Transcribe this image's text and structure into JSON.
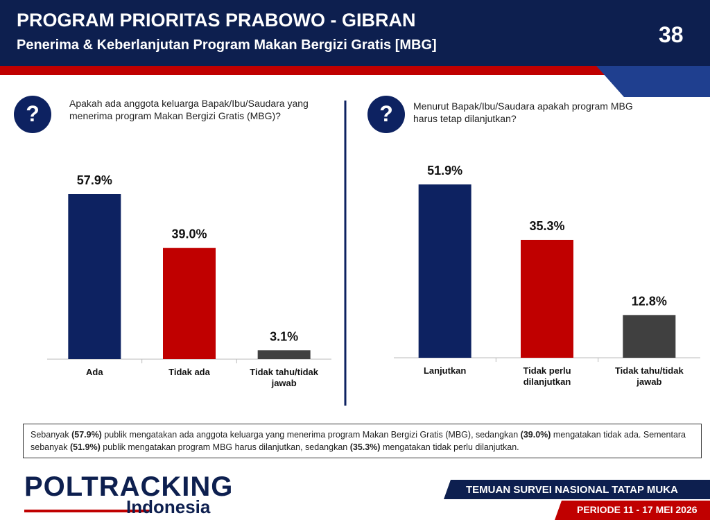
{
  "header": {
    "title": "PROGRAM PRIORITAS PRABOWO - GIBRAN",
    "subtitle": "Penerima & Keberlanjutan Program Makan Bergizi Gratis [MBG]",
    "page_number": "38"
  },
  "question_icon": "?",
  "chart_data": [
    {
      "type": "bar",
      "question": "Apakah ada anggota keluarga Bapak/Ibu/Saudara yang menerima program Makan Bergizi Gratis (MBG)?",
      "categories": [
        "Ada",
        "Tidak ada",
        "Tidak tahu/tidak jawab"
      ],
      "values": [
        57.9,
        39.0,
        3.1
      ],
      "value_labels": [
        "57.9%",
        "39.0%",
        "3.1%"
      ],
      "colors": [
        "#0d2261",
        "#c00000",
        "#404040"
      ]
    },
    {
      "type": "bar",
      "question": "Menurut Bapak/Ibu/Saudara apakah program MBG harus tetap dilanjutkan?",
      "categories": [
        "Lanjutkan",
        "Tidak perlu dilanjutkan",
        "Tidak tahu/tidak jawab"
      ],
      "values": [
        51.9,
        35.3,
        12.8
      ],
      "value_labels": [
        "51.9%",
        "35.3%",
        "12.8%"
      ],
      "colors": [
        "#0d2261",
        "#c00000",
        "#404040"
      ]
    }
  ],
  "summary": [
    {
      "text": "Sebanyak ",
      "bold": false
    },
    {
      "text": "(57.9%)",
      "bold": true
    },
    {
      "text": " publik mengatakan ada anggota keluarga yang menerima program Makan Bergizi Gratis (MBG), sedangkan ",
      "bold": false
    },
    {
      "text": "(39.0%)",
      "bold": true
    },
    {
      "text": " mengatakan tidak ada. Sementara sebanyak ",
      "bold": false
    },
    {
      "text": "(51.9%)",
      "bold": true
    },
    {
      "text": " publik mengatakan program MBG harus dilanjutkan, sedangkan ",
      "bold": false
    },
    {
      "text": "(35.3%)",
      "bold": true
    },
    {
      "text": " mengatakan tidak perlu dilanjutkan.",
      "bold": false
    }
  ],
  "footer": {
    "logo": "POLTRACKING",
    "logo_sub": "Indonesia",
    "banner": "TEMUAN SURVEI NASIONAL TATAP MUKA",
    "period": "PERIODE 11 - 17 MEI 2026"
  }
}
